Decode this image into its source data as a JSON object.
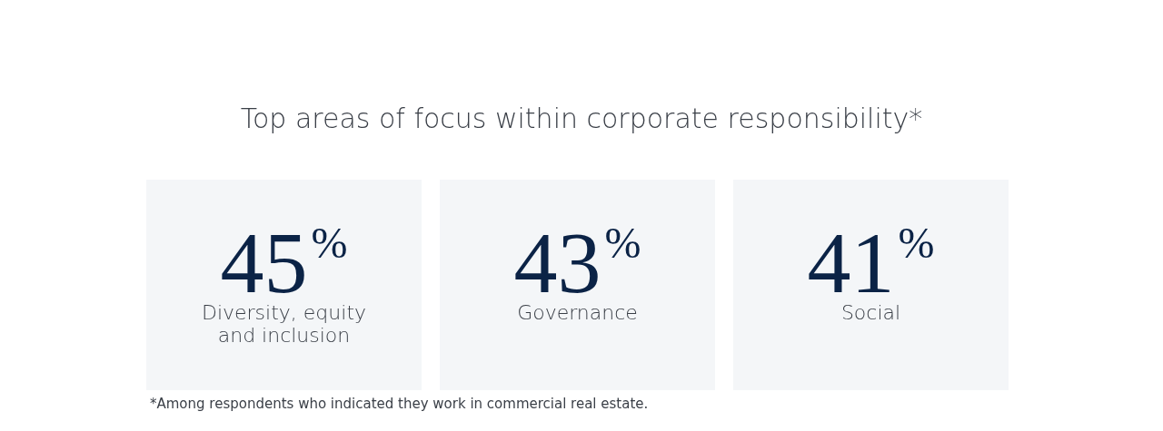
{
  "chart_data": {
    "type": "other",
    "title": "Top areas of focus within corporate responsibility*",
    "categories": [
      "Diversity, equity and inclusion",
      "Governance",
      "Social"
    ],
    "values": [
      45,
      43,
      41
    ],
    "value_labels": [
      "45%",
      "43%",
      "41%"
    ],
    "colors": [
      "#f4f6f8",
      "#f4f6f8",
      "#f4f6f8"
    ],
    "annotations": [
      "*Among respondents who indicated they work in commercial real estate."
    ]
  }
}
